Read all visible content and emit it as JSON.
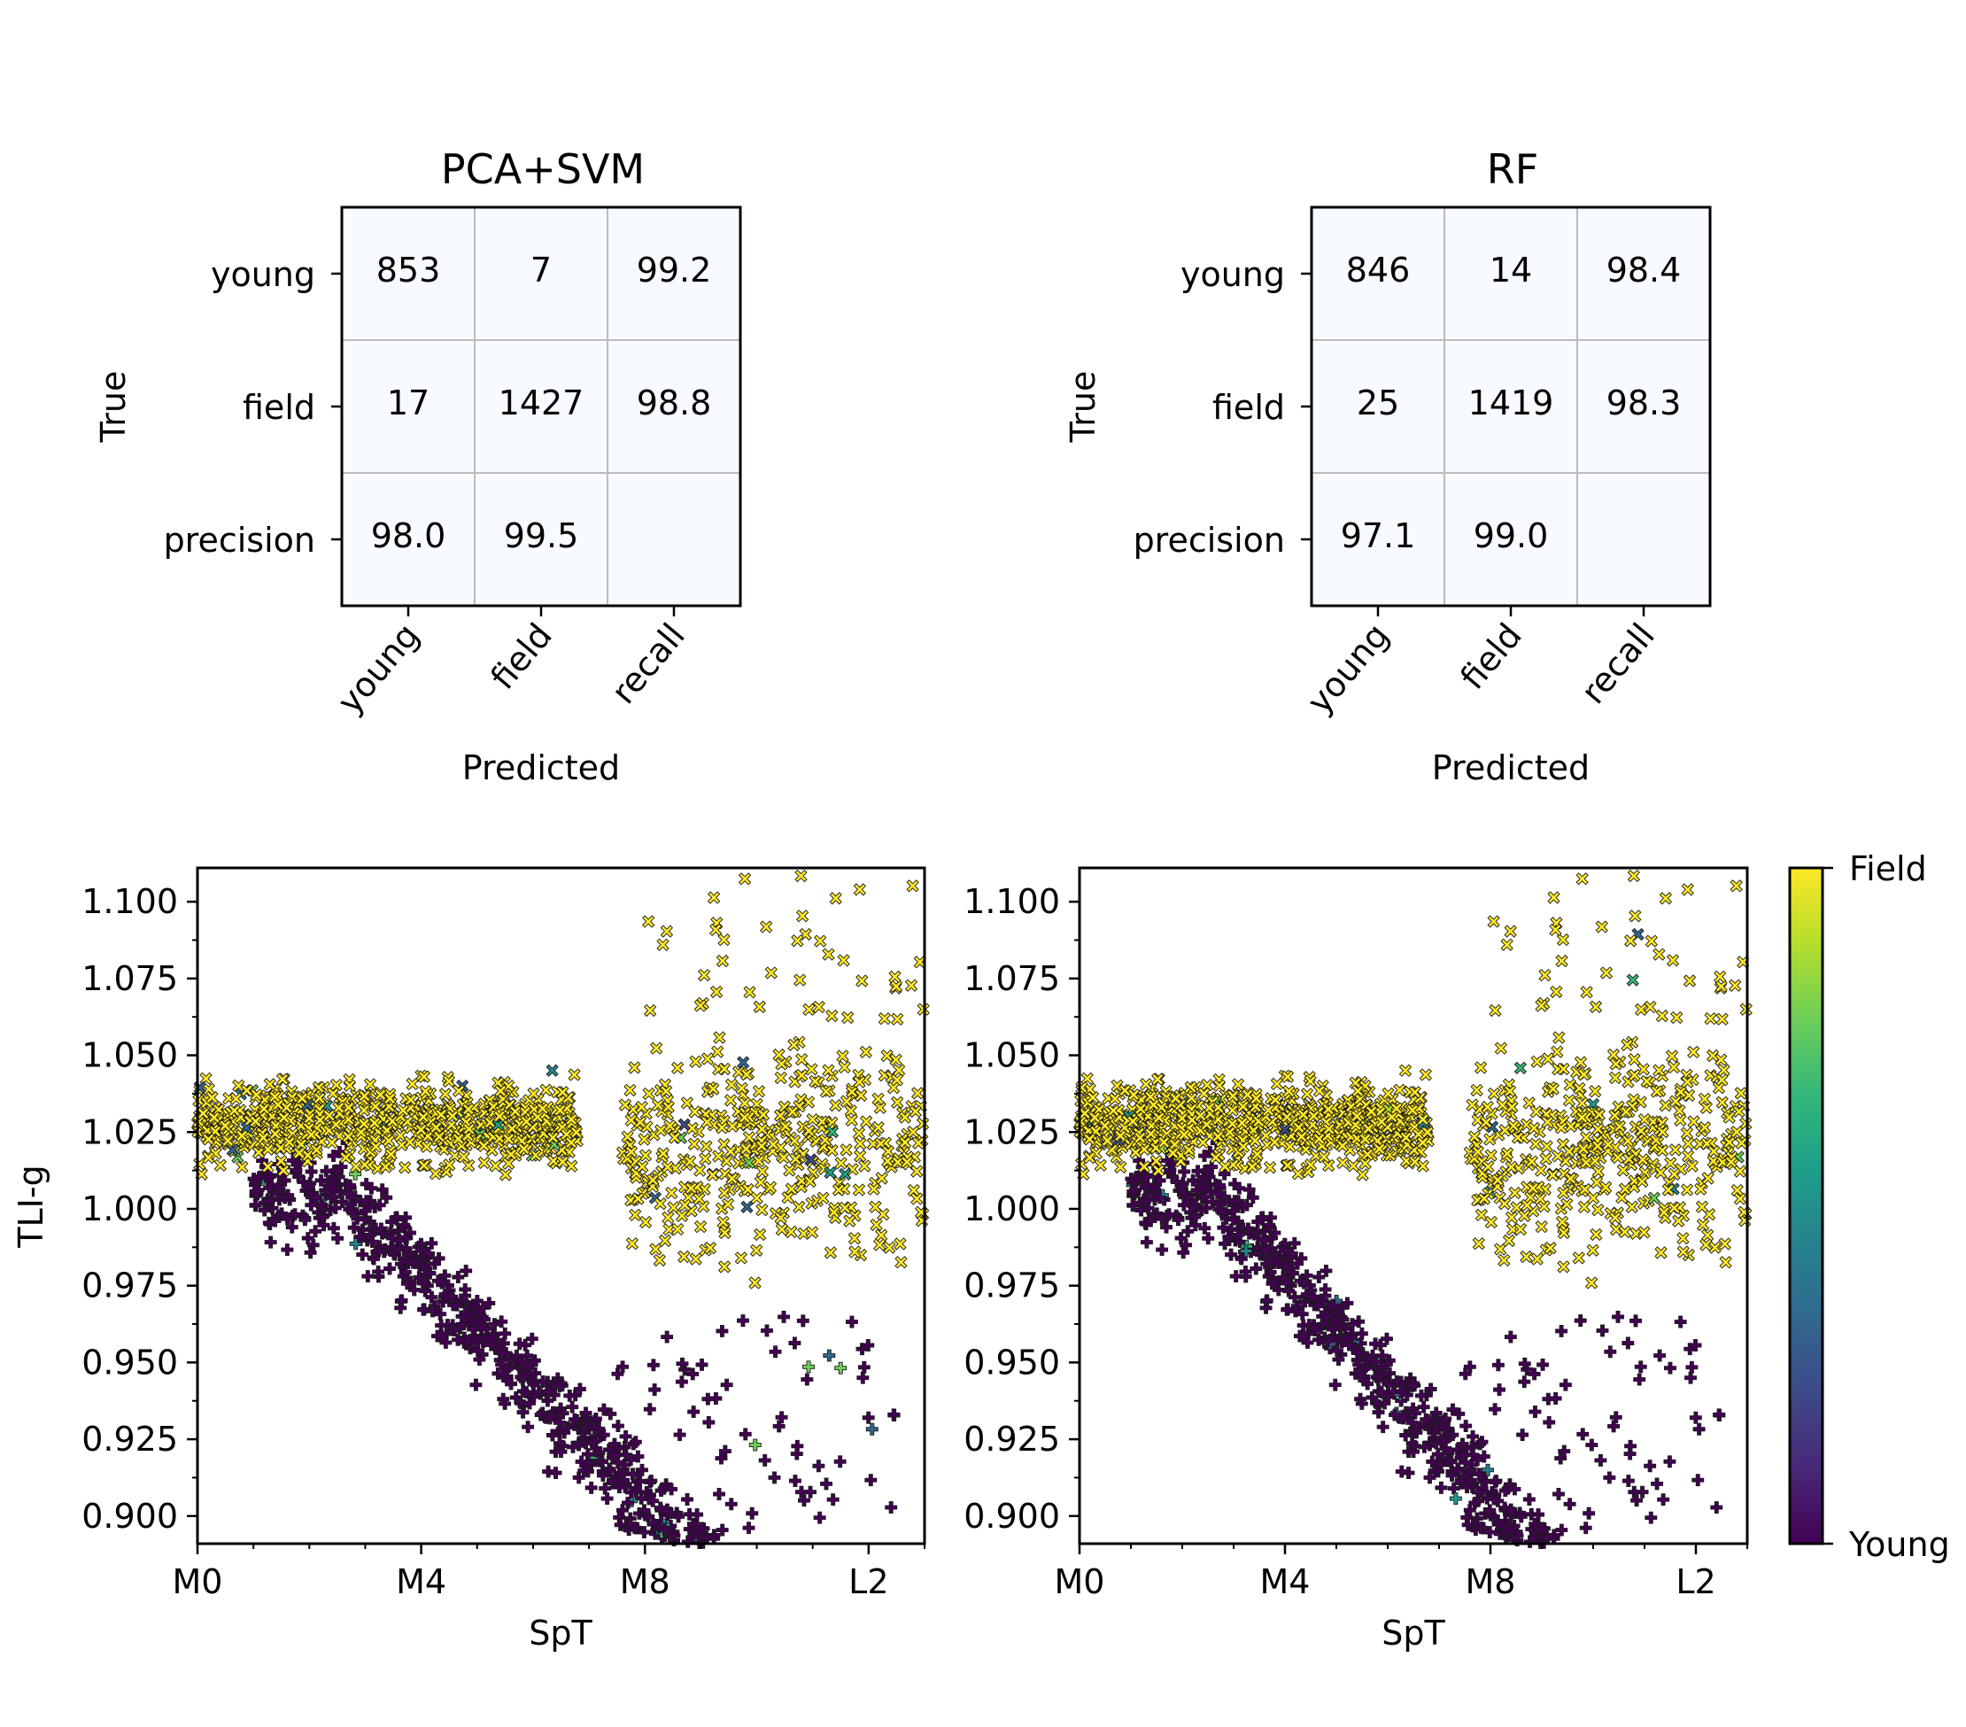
{
  "colors": {
    "young": "#440154",
    "field": "#fde725",
    "cell_bg": "#f7fbff",
    "grid": "#bbbbbb",
    "viridis": [
      "#440154",
      "#482878",
      "#3e4989",
      "#31688e",
      "#26828e",
      "#1f9e89",
      "#35b779",
      "#6ece58",
      "#b5de2b",
      "#fde725"
    ]
  },
  "matrices": [
    {
      "title": "PCA+SVM",
      "ylabel": "True",
      "xlabel": "Predicted",
      "row_labels": [
        "young",
        "field",
        "precision"
      ],
      "col_labels": [
        "young",
        "field",
        "recall"
      ],
      "cells": [
        [
          "853",
          "7",
          "99.2"
        ],
        [
          "17",
          "1427",
          "98.8"
        ],
        [
          "98.0",
          "99.5",
          ""
        ]
      ]
    },
    {
      "title": "RF",
      "ylabel": "True",
      "xlabel": "Predicted",
      "row_labels": [
        "young",
        "field",
        "precision"
      ],
      "col_labels": [
        "young",
        "field",
        "recall"
      ],
      "cells": [
        [
          "846",
          "14",
          "98.4"
        ],
        [
          "25",
          "1419",
          "98.3"
        ],
        [
          "97.1",
          "99.0",
          ""
        ]
      ]
    }
  ],
  "chart_data": [
    {
      "type": "scatter",
      "name": "PCA+SVM predictions",
      "xlabel": "SpT",
      "ylabel": "TLI-g",
      "xlim": [
        0,
        13
      ],
      "ylim": [
        0.891,
        1.111
      ],
      "x_ticks": [
        0,
        4,
        8,
        12
      ],
      "x_tick_labels": [
        "M0",
        "M4",
        "M8",
        "L2"
      ],
      "y_ticks": [
        0.9,
        0.925,
        0.95,
        0.975,
        1.0,
        1.025,
        1.05,
        1.075,
        1.1
      ],
      "y_tick_labels": [
        "0.900",
        "0.925",
        "0.950",
        "0.975",
        "1.000",
        "1.025",
        "1.050",
        "1.075",
        "1.100"
      ],
      "markers": {
        "young": "plus",
        "field": "x"
      },
      "color_value": "classifier output, 0 = Young, 1 = Field",
      "series": [
        {
          "name": "young (+)",
          "description": "dense sequence: ~1.01 at M2-M5 falling to ~0.90 at M7-M9, sparse outliers to L2"
        },
        {
          "name": "field (x)",
          "description": "broad band 1.00-1.06 for M0-M6, scattered 0.94-1.11 for M7-L3"
        }
      ]
    },
    {
      "type": "scatter",
      "name": "RF predictions",
      "xlabel": "SpT",
      "ylabel": "TLI-g",
      "xlim": [
        0,
        13
      ],
      "ylim": [
        0.891,
        1.111
      ],
      "x_ticks": [
        0,
        4,
        8,
        12
      ],
      "x_tick_labels": [
        "M0",
        "M4",
        "M8",
        "L2"
      ],
      "y_ticks": [
        0.9,
        0.925,
        0.95,
        0.975,
        1.0,
        1.025,
        1.05,
        1.075,
        1.1
      ],
      "y_tick_labels": [
        "0.900",
        "0.925",
        "0.950",
        "0.975",
        "1.000",
        "1.025",
        "1.050",
        "1.075",
        "1.100"
      ],
      "markers": {
        "young": "plus",
        "field": "x"
      },
      "color_value": "classifier output, 0 = Young, 1 = Field",
      "series": [
        {
          "name": "young (+)",
          "description": "same sequence as left panel"
        },
        {
          "name": "field (x)",
          "description": "same distribution as left panel"
        }
      ]
    }
  ],
  "colorbar": {
    "top_label": "Field",
    "bottom_label": "Young"
  }
}
